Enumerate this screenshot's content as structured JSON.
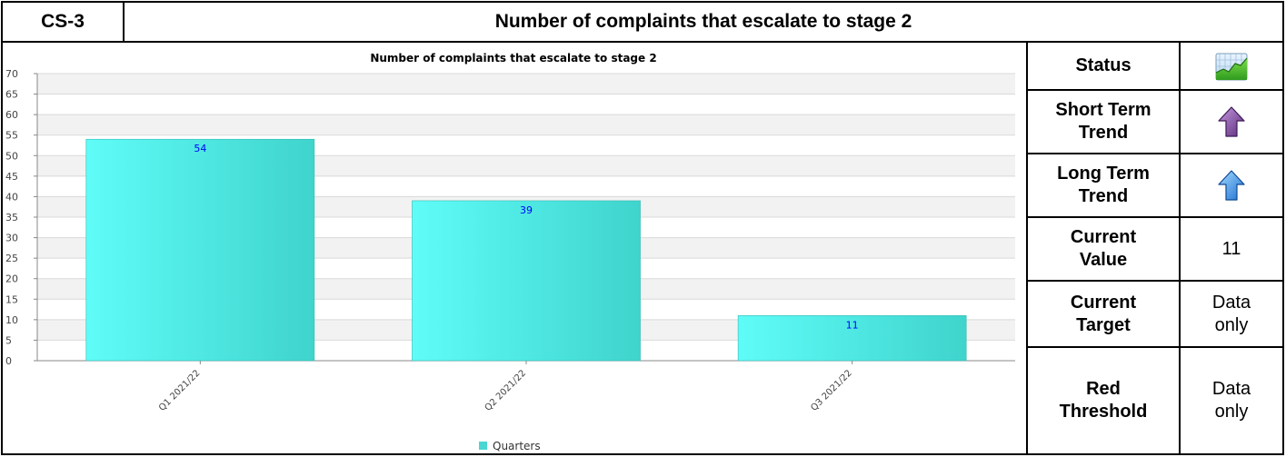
{
  "header": {
    "code": "CS-3",
    "title": "Number of complaints that escalate to stage 2"
  },
  "side": {
    "status_label": "Status",
    "status_icon": "status-chart-icon",
    "short_term_label": [
      "Short Term",
      "Trend"
    ],
    "short_term_icon": "purple-up-arrow-icon",
    "long_term_label": [
      "Long Term",
      "Trend"
    ],
    "long_term_icon": "blue-up-arrow-icon",
    "current_value_label": [
      "Current",
      "Value"
    ],
    "current_value": "11",
    "current_target_label": [
      "Current",
      "Target"
    ],
    "current_target_value": [
      "Data",
      "only"
    ],
    "red_threshold_label": [
      "Red",
      "Threshold"
    ],
    "red_threshold_value": [
      "Data",
      "only"
    ]
  },
  "chart_data": {
    "type": "bar",
    "title": "Number of complaints that escalate to stage 2",
    "categories": [
      "Q1 2021/22",
      "Q2 2021/22",
      "Q3 2021/22"
    ],
    "series": [
      {
        "name": "Quarters",
        "values": [
          54,
          39,
          11
        ]
      }
    ],
    "ylim": [
      0,
      70
    ],
    "yticks": [
      0,
      5,
      10,
      15,
      20,
      25,
      30,
      35,
      40,
      45,
      50,
      55,
      60,
      65,
      70
    ],
    "grid": true,
    "legend": "bottom-center",
    "bar_color": "#4de8e6",
    "label_color": "#0000ff"
  }
}
